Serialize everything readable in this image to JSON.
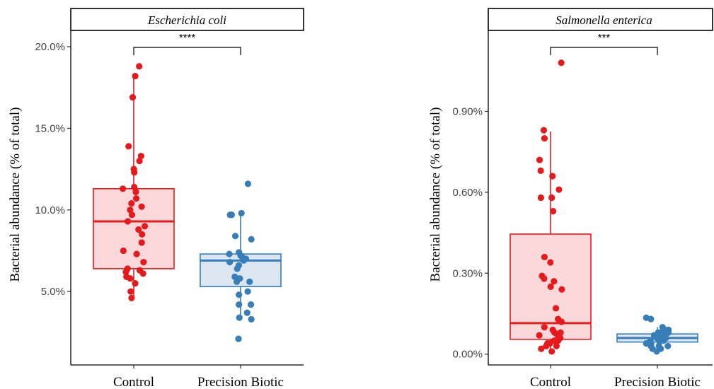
{
  "chart_data": [
    {
      "type": "box",
      "title": "Escherichia coli",
      "ylabel": "Bacterial abundance (% of total)",
      "categories": [
        "Control",
        "Precision Biotic"
      ],
      "ylim": [
        0.5,
        21.0
      ],
      "yticks": [
        5.0,
        10.0,
        15.0,
        20.0
      ],
      "ytick_labels": [
        "5.0%",
        "10.0%",
        "15.0%",
        "20.0%"
      ],
      "colors": [
        "#e41a1c",
        "#377eb8"
      ],
      "fills": [
        "#fbd9da",
        "#dce6f1"
      ],
      "grid": false,
      "significance": "****",
      "boxes": [
        {
          "category": "Control",
          "q1": 6.4,
          "median": 9.3,
          "q3": 11.3,
          "whisker_low": 4.6,
          "whisker_high": 18.2
        },
        {
          "category": "Precision Biotic",
          "q1": 5.3,
          "median": 6.9,
          "q3": 7.3,
          "whisker_low": 3.3,
          "whisker_high": 9.7
        }
      ],
      "points": [
        {
          "category": "Control",
          "values": [
            18.8,
            18.2,
            16.9,
            13.9,
            13.3,
            13.0,
            12.5,
            12.3,
            11.4,
            11.3,
            11.1,
            10.7,
            10.4,
            10.2,
            10.0,
            9.7,
            9.3,
            9.0,
            8.8,
            8.5,
            8.0,
            7.5,
            7.3,
            6.8,
            6.4,
            6.3,
            6.2,
            6.1,
            5.9,
            5.8,
            5.5,
            5.0,
            4.6
          ]
        },
        {
          "category": "Precision Biotic",
          "values": [
            11.6,
            9.8,
            9.7,
            9.7,
            8.4,
            8.2,
            7.4,
            7.3,
            7.2,
            7.1,
            7.0,
            6.9,
            6.8,
            6.6,
            6.4,
            5.9,
            5.8,
            5.6,
            5.6,
            5.0,
            4.8,
            4.2,
            4.2,
            3.7,
            3.4,
            3.3,
            2.1
          ]
        }
      ]
    },
    {
      "type": "box",
      "title": "Salmonella enterica",
      "ylabel": "Bacterial abundance (% of total)",
      "categories": [
        "Control",
        "Precision Biotic"
      ],
      "ylim": [
        -0.04,
        1.2
      ],
      "yticks": [
        0.0,
        0.3,
        0.6,
        0.9
      ],
      "ytick_labels": [
        "0.00%",
        "0.30%",
        "0.60%",
        "0.90%"
      ],
      "colors": [
        "#e41a1c",
        "#377eb8"
      ],
      "fills": [
        "#fbd9da",
        "#dce6f1"
      ],
      "grid": false,
      "significance": "***",
      "boxes": [
        {
          "category": "Control",
          "q1": 0.055,
          "median": 0.115,
          "q3": 0.445,
          "whisker_low": 0.01,
          "whisker_high": 0.825
        },
        {
          "category": "Precision Biotic",
          "q1": 0.045,
          "median": 0.06,
          "q3": 0.075,
          "whisker_low": 0.015,
          "whisker_high": 0.1
        }
      ],
      "points": [
        {
          "category": "Control",
          "values": [
            1.08,
            0.83,
            0.8,
            0.72,
            0.68,
            0.66,
            0.61,
            0.58,
            0.58,
            0.53,
            0.36,
            0.34,
            0.29,
            0.28,
            0.27,
            0.25,
            0.24,
            0.17,
            0.13,
            0.12,
            0.1,
            0.09,
            0.08,
            0.08,
            0.07,
            0.07,
            0.06,
            0.06,
            0.05,
            0.05,
            0.04,
            0.04,
            0.03,
            0.03,
            0.02,
            0.01
          ]
        },
        {
          "category": "Precision Biotic",
          "values": [
            0.135,
            0.13,
            0.1,
            0.09,
            0.09,
            0.08,
            0.08,
            0.08,
            0.07,
            0.07,
            0.07,
            0.07,
            0.06,
            0.06,
            0.06,
            0.06,
            0.06,
            0.05,
            0.05,
            0.05,
            0.05,
            0.04,
            0.04,
            0.04,
            0.03,
            0.03,
            0.03,
            0.02,
            0.02,
            0.01
          ]
        }
      ]
    }
  ]
}
